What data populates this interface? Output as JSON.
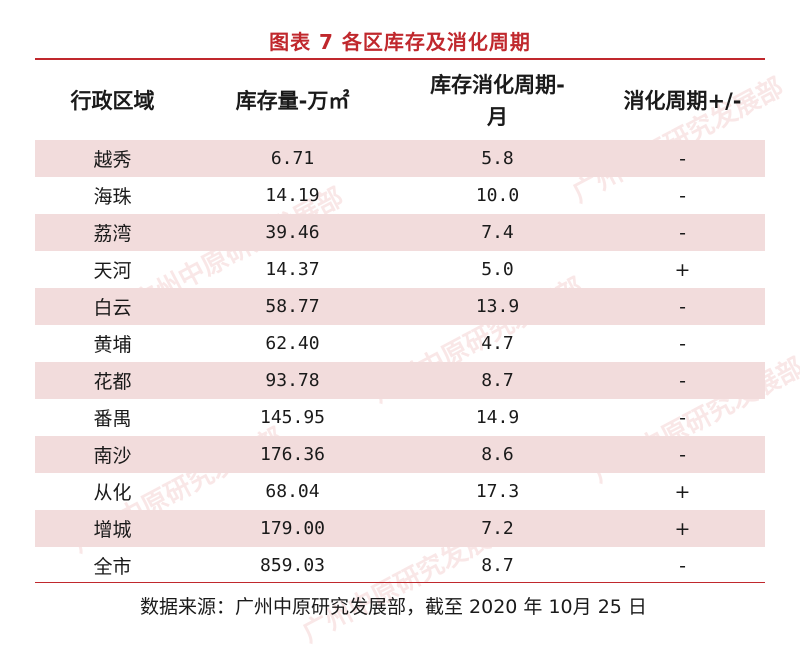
{
  "title": "图表 7 各区库存及消化周期",
  "headers": {
    "district": "行政区域",
    "inventory": "库存量-万㎡",
    "cycle_line1": "库存消化周期-",
    "cycle_line2": "月",
    "change": "消化周期+/-"
  },
  "rows": [
    {
      "district": "越秀",
      "inventory": "6.71",
      "cycle": "5.8",
      "change": "-"
    },
    {
      "district": "海珠",
      "inventory": "14.19",
      "cycle": "10.0",
      "change": "-"
    },
    {
      "district": "荔湾",
      "inventory": "39.46",
      "cycle": "7.4",
      "change": "-"
    },
    {
      "district": "天河",
      "inventory": "14.37",
      "cycle": "5.0",
      "change": "+"
    },
    {
      "district": "白云",
      "inventory": "58.77",
      "cycle": "13.9",
      "change": "-"
    },
    {
      "district": "黄埔",
      "inventory": "62.40",
      "cycle": "4.7",
      "change": "-"
    },
    {
      "district": "花都",
      "inventory": "93.78",
      "cycle": "8.7",
      "change": "-"
    },
    {
      "district": "番禺",
      "inventory": "145.95",
      "cycle": "14.9",
      "change": "-"
    },
    {
      "district": "南沙",
      "inventory": "176.36",
      "cycle": "8.6",
      "change": "-"
    },
    {
      "district": "从化",
      "inventory": "68.04",
      "cycle": "17.3",
      "change": "+"
    },
    {
      "district": "增城",
      "inventory": "179.00",
      "cycle": "7.2",
      "change": "+"
    },
    {
      "district": "全市",
      "inventory": "859.03",
      "cycle": "8.7",
      "change": "-"
    }
  ],
  "source": "数据来源：广州中原研究发展部，截至 2020 年 10月 25 日",
  "watermark": "广州中原研究发展部",
  "colors": {
    "accent": "#c0282d",
    "row_shade": "#f2dcdc"
  }
}
